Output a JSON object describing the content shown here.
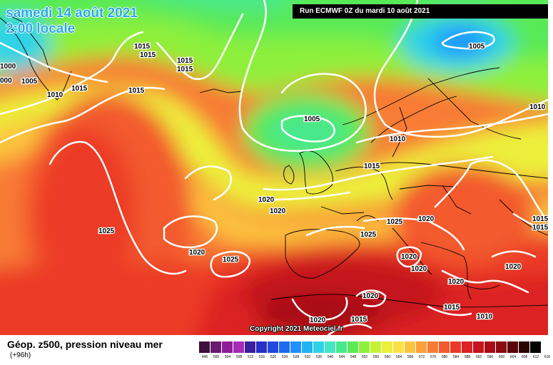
{
  "header": {
    "date_line": "samedi 14 août 2021",
    "time_line": "2:00 locale",
    "run_label": "Run ECMWF 0Z du mardi 10 août 2021"
  },
  "footer": {
    "title": "Géop. z500, pression niveau mer",
    "forecast_hour": "(+96h)",
    "copyright": "Copyright 2021 Meteociel.fr",
    "scale_colors": [
      "#3d0f3d",
      "#6a1b6e",
      "#8e1d9a",
      "#a62ab8",
      "#3a1fa0",
      "#2731c6",
      "#2348de",
      "#1d6bef",
      "#1e90ff",
      "#22b3f5",
      "#2fd3e6",
      "#44e6c4",
      "#48e88e",
      "#59ea56",
      "#8ef03a",
      "#c5f234",
      "#ecf03a",
      "#fbe244",
      "#fcc43e",
      "#fba03a",
      "#f87c34",
      "#f35a2e",
      "#ec3a28",
      "#dc2223",
      "#c4141c",
      "#a80c14",
      "#8a0a0f",
      "#5a0608",
      "#2a0303",
      "#000000"
    ],
    "scale_ticks": [
      "496",
      "500",
      "504",
      "508",
      "512",
      "516",
      "520",
      "524",
      "528",
      "532",
      "536",
      "540",
      "544",
      "548",
      "552",
      "556",
      "560",
      "564",
      "568",
      "572",
      "576",
      "580",
      "584",
      "588",
      "592",
      "596",
      "600",
      "604",
      "608",
      "612",
      "616"
    ]
  },
  "isobar_labels": [
    {
      "text": "1015"
    },
    {
      "text": "1015"
    },
    {
      "text": "1015"
    },
    {
      "text": "1015"
    },
    {
      "text": "1000"
    },
    {
      "text": "1005"
    },
    {
      "text": "000"
    },
    {
      "text": "1010"
    },
    {
      "text": "1015"
    },
    {
      "text": "1015"
    },
    {
      "text": "1005"
    },
    {
      "text": "1005"
    },
    {
      "text": "1010"
    },
    {
      "text": "1010"
    },
    {
      "text": "1015"
    },
    {
      "text": "1020"
    },
    {
      "text": "1020"
    },
    {
      "text": "1025"
    },
    {
      "text": "1025"
    },
    {
      "text": "1025"
    },
    {
      "text": "1020"
    },
    {
      "text": "1020"
    },
    {
      "text": "1025"
    },
    {
      "text": "1020"
    },
    {
      "text": "1020"
    },
    {
      "text": "1020"
    },
    {
      "text": "1020"
    },
    {
      "text": "1020"
    },
    {
      "text": "1015"
    },
    {
      "text": "1015"
    },
    {
      "text": "1015"
    },
    {
      "text": "1010"
    },
    {
      "text": "1015"
    },
    {
      "text": "1020"
    }
  ]
}
